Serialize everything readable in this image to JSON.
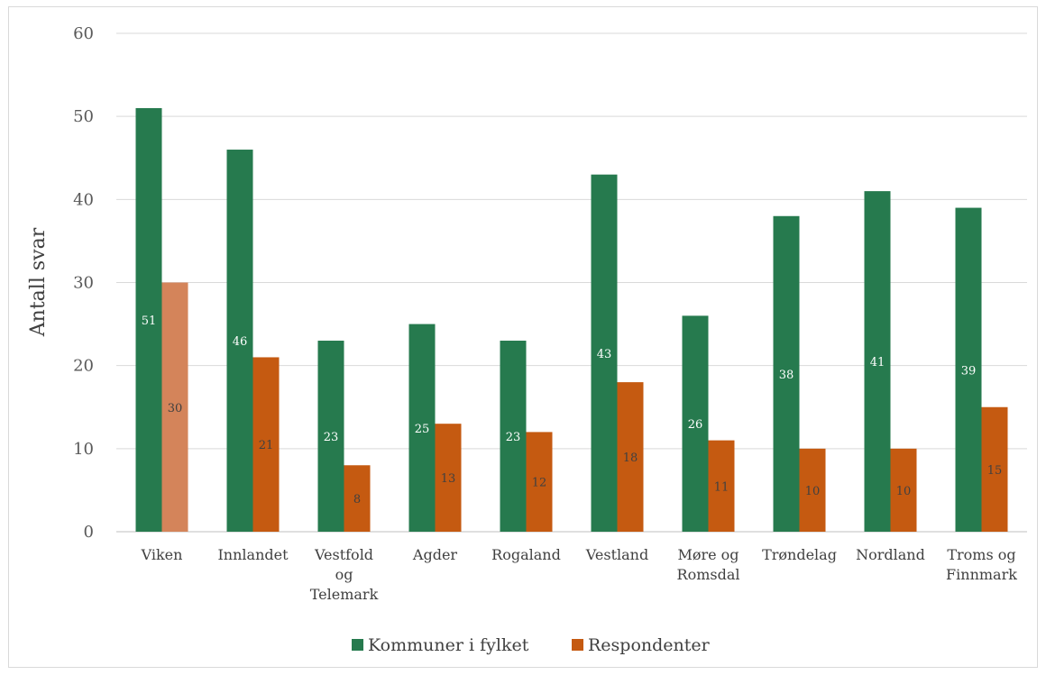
{
  "chart_data": {
    "type": "bar",
    "title": "",
    "xlabel": "",
    "ylabel": "Antall svar",
    "ylim": [
      0,
      60
    ],
    "yticks": [
      0,
      10,
      20,
      30,
      40,
      50,
      60
    ],
    "grid": true,
    "legend_position": "bottom",
    "categories": [
      [
        "Viken"
      ],
      [
        "Innlandet"
      ],
      [
        "Vestfold",
        "og",
        "Telemark"
      ],
      [
        "Agder"
      ],
      [
        "Rogaland"
      ],
      [
        "Vestland"
      ],
      [
        "Møre og",
        "Romsdal"
      ],
      [
        "Trøndelag"
      ],
      [
        "Nordland"
      ],
      [
        "Troms og",
        "Finnmark"
      ]
    ],
    "series": [
      {
        "name": "Kommuner i fylket",
        "color": "#267a4e",
        "values": [
          51,
          46,
          23,
          25,
          23,
          43,
          26,
          38,
          41,
          39
        ]
      },
      {
        "name": "Respondenter",
        "color": "#c55a11",
        "highlight_color": "#d4845a",
        "highlight_index": 0,
        "values": [
          30,
          21,
          8,
          13,
          12,
          18,
          11,
          10,
          10,
          15
        ]
      }
    ]
  }
}
